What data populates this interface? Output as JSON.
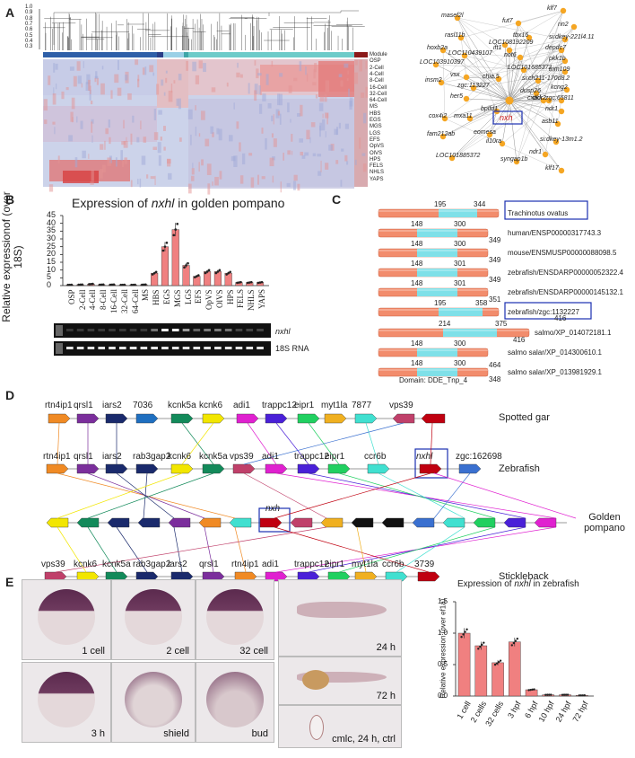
{
  "panels": {
    "a": "A",
    "b": "B",
    "c": "C",
    "d": "D",
    "e": "E"
  },
  "panel_a": {
    "dendro_ticks": [
      "1.0",
      "0.9",
      "0.8",
      "0.7",
      "0.6",
      "0.5",
      "0.4",
      "0.3"
    ],
    "heatmap_rows": [
      "Module",
      "OSP",
      "2-Cell",
      "4-Cell",
      "8-Cell",
      "16-Cell",
      "32-Cell",
      "64-Cell",
      "MS",
      "HBS",
      "EGS",
      "MGS",
      "LGS",
      "EFS",
      "OpVS",
      "OlVS",
      "HPS",
      "FELS",
      "NHLS",
      "YAPS"
    ],
    "network_center": "nxh",
    "network_genes": [
      "klf7",
      "masef2l",
      "fut7",
      "rin2",
      "tbx16",
      "ift1",
      "si:dkey-221l4.11",
      "rasl11b",
      "LOC108192209",
      "depdc7",
      "hoxb2a",
      "LOC110439107",
      "not6",
      "pkk1b",
      "LOC103910397",
      "LOC101685372",
      "trim109",
      "insm2",
      "vsx",
      "chia.5",
      "si:ch211-170d8.2",
      "zgc:113227",
      "her5",
      "kcng2",
      "zgc:65811",
      "cxadr",
      "ndr1",
      "cox4i2",
      "bpifd1",
      "asb11",
      "dkk2",
      "dusp26",
      "mxa11",
      "eomesa",
      "fam212ab",
      "il10ra",
      "si:dkey-13m1.2",
      "ndr1",
      "LOC101885372",
      "syngap1b",
      "klf17"
    ]
  },
  "panel_b": {
    "title_prefix": "Expression of ",
    "title_gene": "nxhl",
    "title_suffix": " in golden pompano",
    "gel_label_1": "nxhl",
    "gel_label_2": "18S RNA"
  },
  "chart_data": [
    {
      "type": "bar",
      "title": "Expression of nxhl in golden pompano",
      "ylabel": "Relative expressionof (over 18S)",
      "categories": [
        "OSP",
        "2-Cell",
        "4-Cell",
        "8-Cell",
        "16-Cell",
        "32-Cell",
        "64-Cell",
        "MS",
        "HBS",
        "EGS",
        "MGS",
        "LGS",
        "EFS",
        "OpVS",
        "OlVS",
        "HPS",
        "FELS",
        "NHLS",
        "YAPS"
      ],
      "values": [
        0.5,
        0.6,
        1,
        0.6,
        0.6,
        0.5,
        0.5,
        0.6,
        8,
        25,
        36,
        13,
        6,
        9,
        9,
        8,
        2,
        2,
        2
      ],
      "ylim": [
        0,
        45
      ],
      "yticks": [
        0,
        5,
        10,
        15,
        20,
        25,
        30,
        35,
        40,
        45
      ],
      "bar_color": "#f08080"
    },
    {
      "type": "bar",
      "title": "Expression of nxhl in zebrafish",
      "ylabel": "Relative expression (over ef1a)",
      "categories": [
        "1 cell",
        "2 cells",
        "32 cells",
        "3 hpf",
        "6 hpf",
        "10 hpf",
        "24 hpf",
        "72 hpf"
      ],
      "values": [
        1.0,
        0.8,
        0.53,
        0.86,
        0.1,
        0.02,
        0.02,
        0.01
      ],
      "ylim": [
        0,
        1.5
      ],
      "yticks": [
        0.0,
        0.5,
        1.0,
        1.5
      ],
      "bar_color": "#f08080"
    }
  ],
  "panel_c": {
    "proteins": [
      {
        "name": "Trachinotus ovatus",
        "n1": "195",
        "n2": "344",
        "n3": ""
      },
      {
        "name": "human/ENSP00000317743.3",
        "n1": "148",
        "n2": "300",
        "n3": "349"
      },
      {
        "name": "mouse/ENSMUSP00000088098.5",
        "n1": "148",
        "n2": "300",
        "n3": "349"
      },
      {
        "name": "zebrafish/ENSDARP00000052322.4",
        "n1": "148",
        "n2": "301",
        "n3": "349"
      },
      {
        "name": "zebrafish/ENSDARP00000145132.1",
        "n1": "148",
        "n2": "301",
        "n3": "351"
      },
      {
        "name": "zebrafish/zgc:1132227",
        "n1": "195",
        "n2": "358",
        "n3": ""
      },
      {
        "name": "salmo/XP_014072181.1",
        "n1": "214",
        "n2": "375",
        "n3": "416"
      },
      {
        "name": "salmo salar/XP_014300610.1",
        "n1": "148",
        "n2": "300",
        "n3": "464"
      },
      {
        "name": "salmo salar/XP_013981929.1",
        "n1": "148",
        "n2": "300",
        "n3": "348"
      }
    ],
    "domain_label": "Domain: DDE_Tnp_4"
  },
  "panel_d": {
    "species": [
      "Spotted gar",
      "Zebrafish",
      "Golden pompano",
      "Stickleback"
    ],
    "gar_genes": [
      "rtn4ip1",
      "qrsl1",
      "iars2",
      "7036",
      "kcnk5a",
      "kcnk6",
      "adi1",
      "trappc12",
      "eipr1",
      "myt1la",
      "7877",
      "vps39"
    ],
    "zebra_genes": [
      "rtn4ip1",
      "qrsl1",
      "iars2",
      "rab3gap2",
      "kcnk6",
      "kcnk5a",
      "vps39",
      "adi1",
      "trappc12",
      "eipr1",
      "ccr6b",
      "nxhl",
      "zgc:162698"
    ],
    "pompano_label": "nxh",
    "stickle_genes": [
      "vps39",
      "kcnk6",
      "kcnk5a",
      "rab3gap2",
      "iars2",
      "qrsl1",
      "rtn4ip1",
      "adi1",
      "trappc12",
      "eipr1",
      "myt1la",
      "ccr6b",
      "3739"
    ]
  },
  "panel_e": {
    "image_labels": [
      "1 cell",
      "2 cell",
      "32 cell",
      "3 h",
      "shield",
      "bud",
      "24 h",
      "72 h",
      "cmlc, 24 h, ctrl"
    ],
    "chart_title_prefix": "Expression of ",
    "chart_title_gene": "nxhl",
    "chart_title_suffix": " in zebrafish"
  }
}
